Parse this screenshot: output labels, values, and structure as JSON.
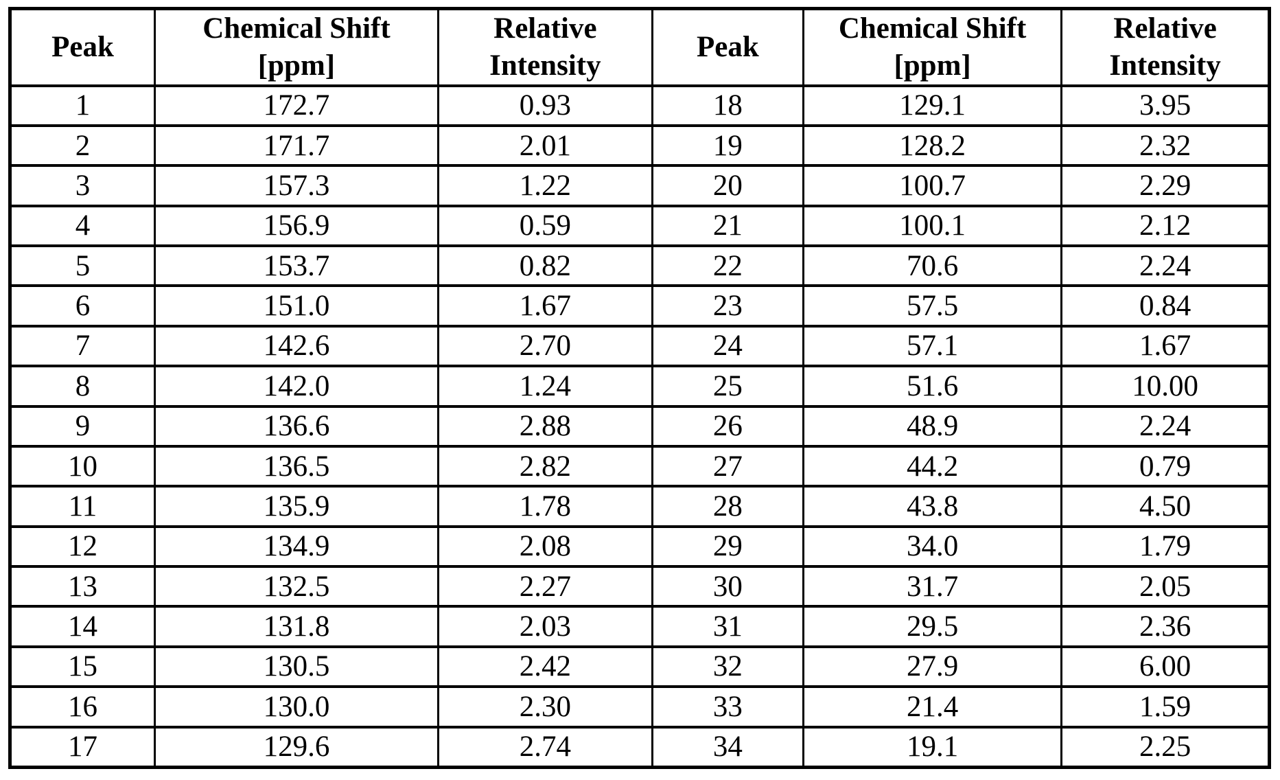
{
  "table": {
    "title_semantic": "NMR peak list",
    "header": {
      "peak": "Peak",
      "chemical_shift_line1": "Chemical Shift",
      "chemical_shift_line2": "[ppm]",
      "relative_intensity_line1": "Relative",
      "relative_intensity_line2": "Intensity"
    },
    "rows_left": [
      {
        "peak": "1",
        "shift": "172.7",
        "intensity": "0.93"
      },
      {
        "peak": "2",
        "shift": "171.7",
        "intensity": "2.01"
      },
      {
        "peak": "3",
        "shift": "157.3",
        "intensity": "1.22"
      },
      {
        "peak": "4",
        "shift": "156.9",
        "intensity": "0.59"
      },
      {
        "peak": "5",
        "shift": "153.7",
        "intensity": "0.82"
      },
      {
        "peak": "6",
        "shift": "151.0",
        "intensity": "1.67"
      },
      {
        "peak": "7",
        "shift": "142.6",
        "intensity": "2.70"
      },
      {
        "peak": "8",
        "shift": "142.0",
        "intensity": "1.24"
      },
      {
        "peak": "9",
        "shift": "136.6",
        "intensity": "2.88"
      },
      {
        "peak": "10",
        "shift": "136.5",
        "intensity": "2.82"
      },
      {
        "peak": "11",
        "shift": "135.9",
        "intensity": "1.78"
      },
      {
        "peak": "12",
        "shift": "134.9",
        "intensity": "2.08"
      },
      {
        "peak": "13",
        "shift": "132.5",
        "intensity": "2.27"
      },
      {
        "peak": "14",
        "shift": "131.8",
        "intensity": "2.03"
      },
      {
        "peak": "15",
        "shift": "130.5",
        "intensity": "2.42"
      },
      {
        "peak": "16",
        "shift": "130.0",
        "intensity": "2.30"
      },
      {
        "peak": "17",
        "shift": "129.6",
        "intensity": "2.74"
      }
    ],
    "rows_right": [
      {
        "peak": "18",
        "shift": "129.1",
        "intensity": "3.95"
      },
      {
        "peak": "19",
        "shift": "128.2",
        "intensity": "2.32"
      },
      {
        "peak": "20",
        "shift": "100.7",
        "intensity": "2.29"
      },
      {
        "peak": "21",
        "shift": "100.1",
        "intensity": "2.12"
      },
      {
        "peak": "22",
        "shift": "70.6",
        "intensity": "2.24"
      },
      {
        "peak": "23",
        "shift": "57.5",
        "intensity": "0.84"
      },
      {
        "peak": "24",
        "shift": "57.1",
        "intensity": "1.67"
      },
      {
        "peak": "25",
        "shift": "51.6",
        "intensity": "10.00"
      },
      {
        "peak": "26",
        "shift": "48.9",
        "intensity": "2.24"
      },
      {
        "peak": "27",
        "shift": "44.2",
        "intensity": "0.79"
      },
      {
        "peak": "28",
        "shift": "43.8",
        "intensity": "4.50"
      },
      {
        "peak": "29",
        "shift": "34.0",
        "intensity": "1.79"
      },
      {
        "peak": "30",
        "shift": "31.7",
        "intensity": "2.05"
      },
      {
        "peak": "31",
        "shift": "29.5",
        "intensity": "2.36"
      },
      {
        "peak": "32",
        "shift": "27.9",
        "intensity": "6.00"
      },
      {
        "peak": "33",
        "shift": "21.4",
        "intensity": "1.59"
      },
      {
        "peak": "34",
        "shift": "19.1",
        "intensity": "2.25"
      }
    ],
    "colors": {
      "border": "#000000",
      "text": "#000000",
      "background": "#ffffff"
    }
  }
}
